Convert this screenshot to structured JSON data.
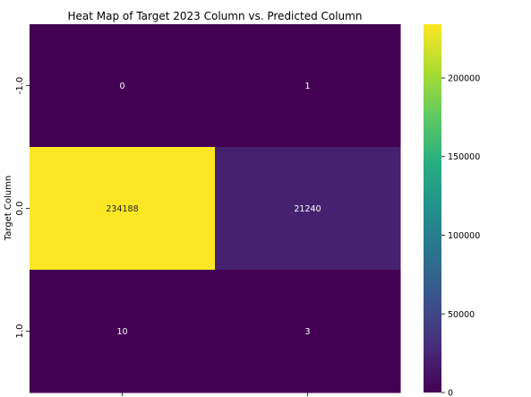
{
  "chart_data": {
    "type": "heatmap",
    "title": "Heat Map of Target 2023 Column vs. Predicted Column",
    "ylabel": "Target Column",
    "xlabel": "",
    "row_labels": [
      "-1.0",
      "0.0",
      "1.0"
    ],
    "col_labels": [
      "",
      ""
    ],
    "values": [
      [
        0,
        1
      ],
      [
        234188,
        21240
      ],
      [
        10,
        3
      ]
    ],
    "colormap": "viridis",
    "colorbar": {
      "range": [
        0,
        234188
      ],
      "ticks": [
        0,
        50000,
        100000,
        150000,
        200000
      ]
    },
    "colors": {
      "low_text": "#ffffff",
      "high_text": "#262626",
      "viridis_min": "#440154",
      "viridis_max": "#fde725"
    }
  }
}
